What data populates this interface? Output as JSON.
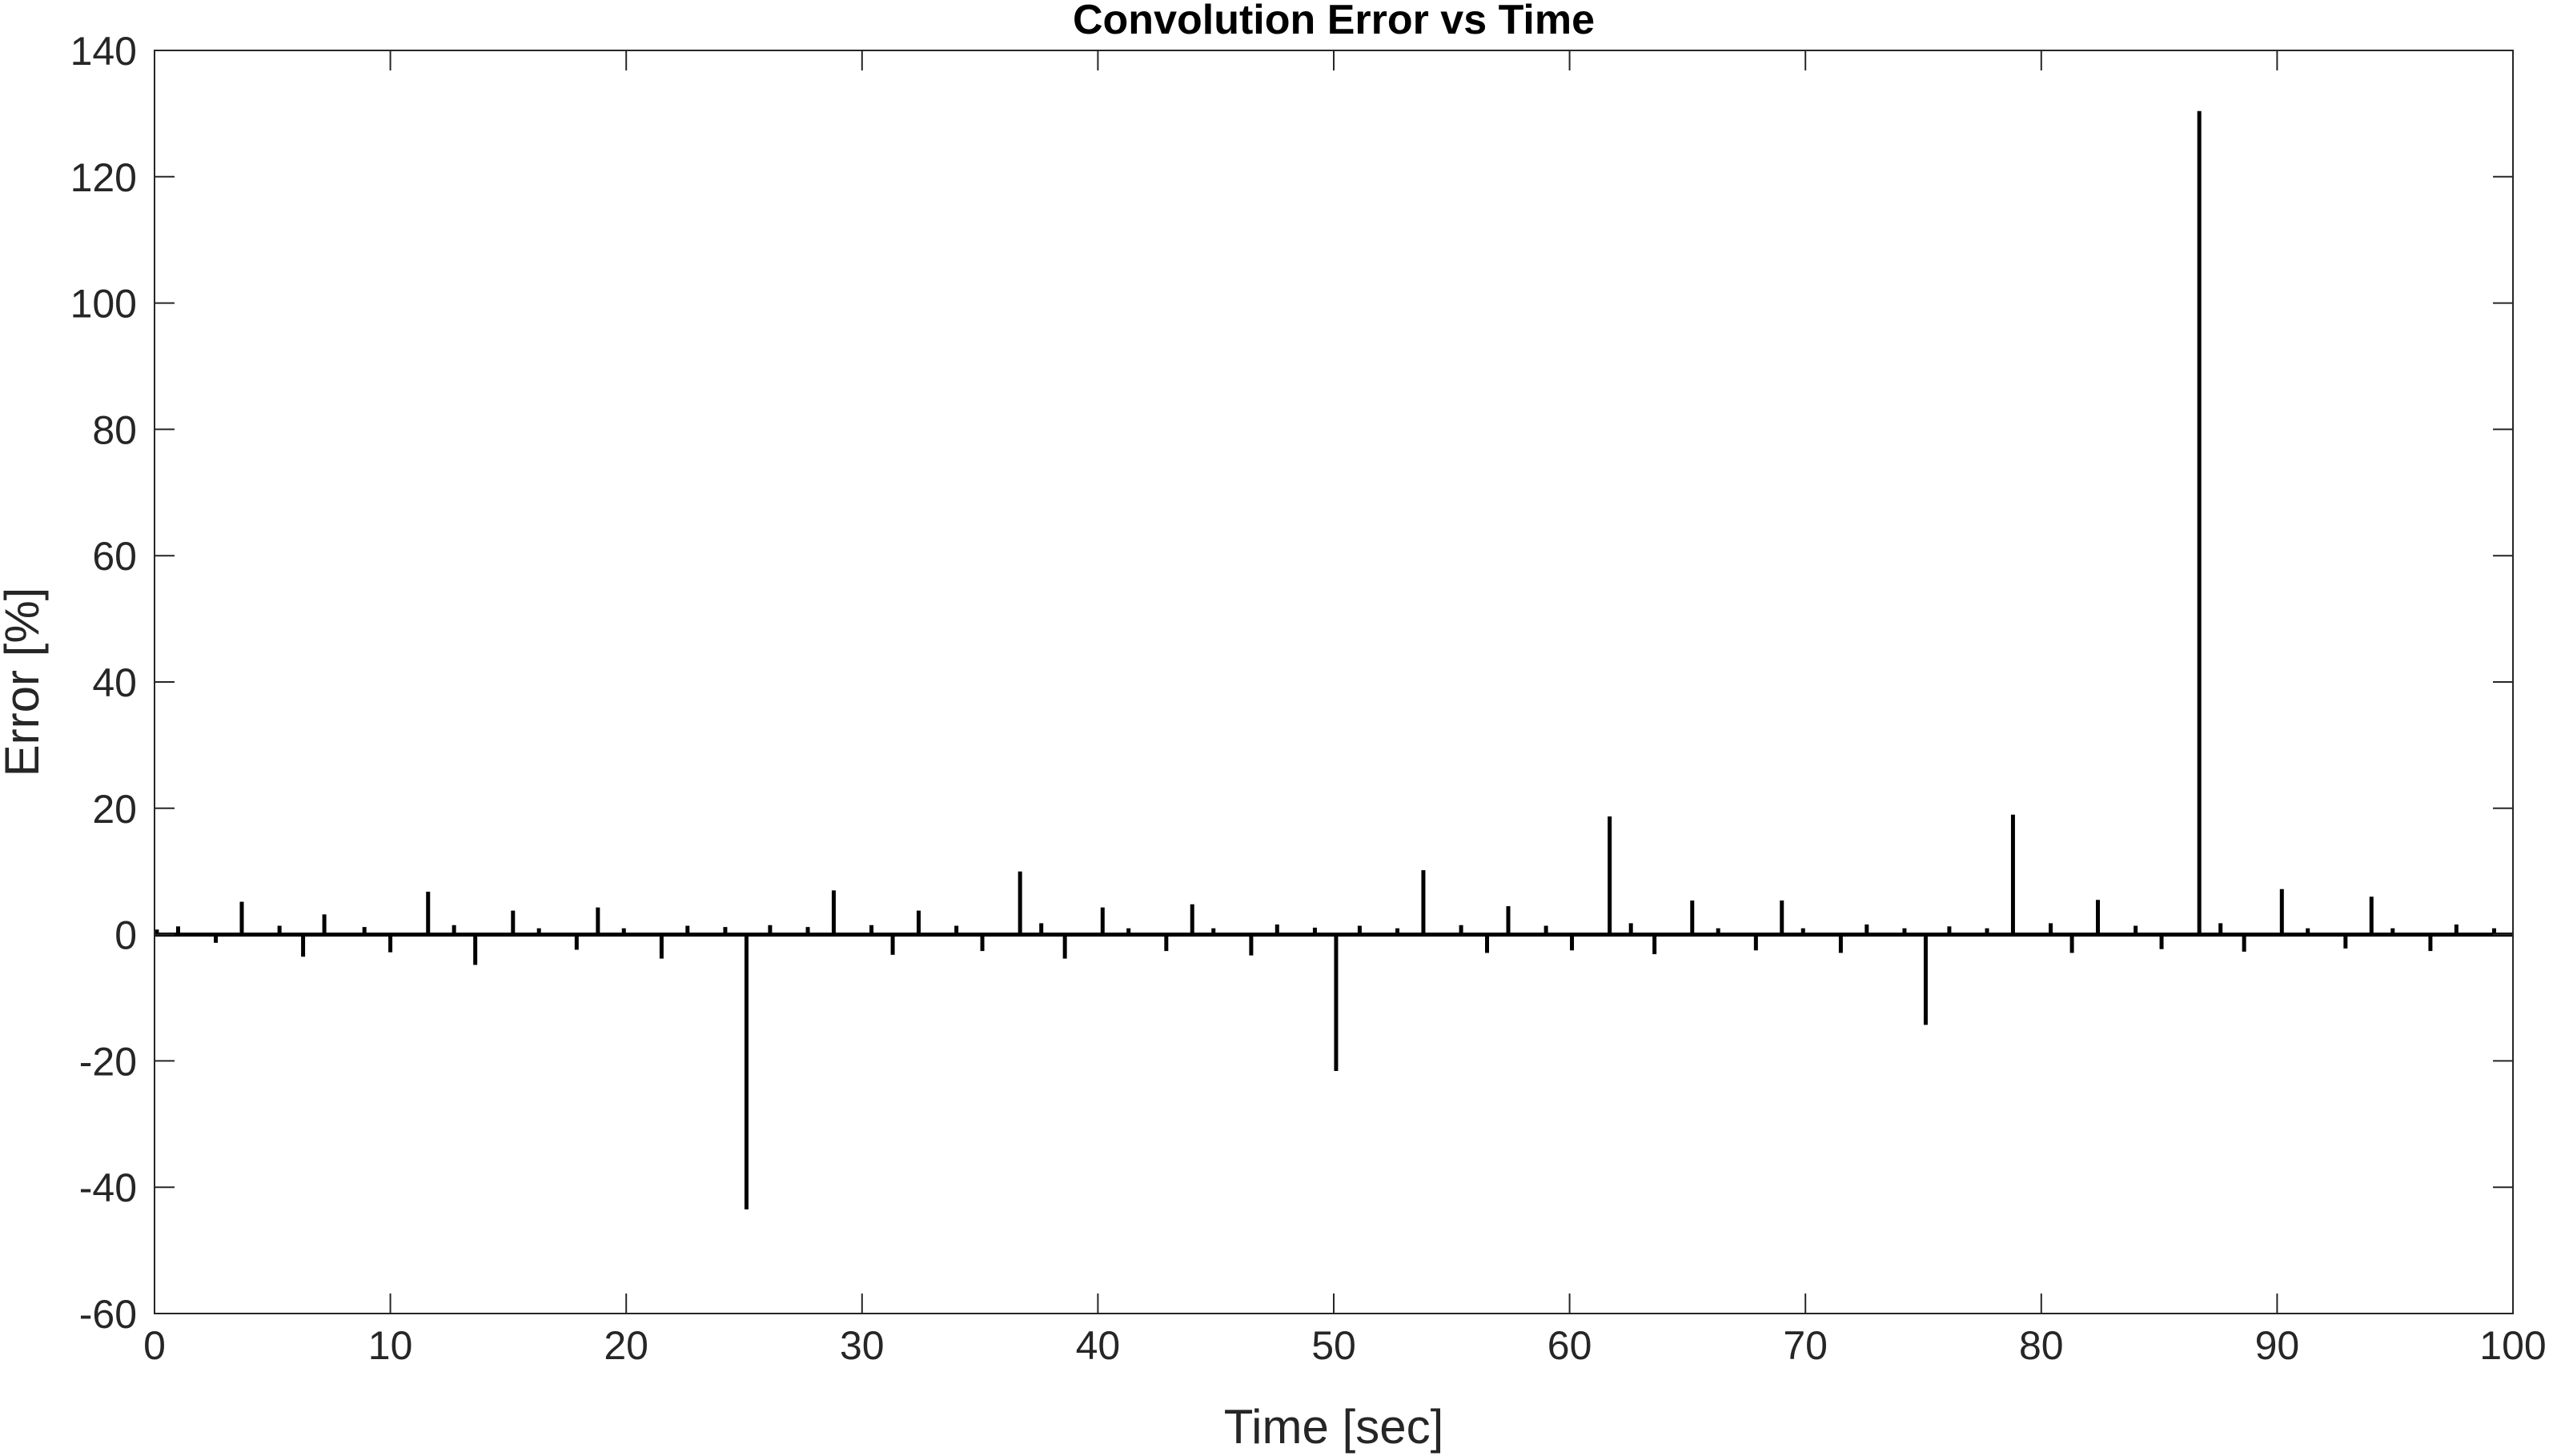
{
  "chart_data": {
    "type": "bar",
    "title": "Convolution Error vs Time",
    "xlabel": "Time [sec]",
    "ylabel": "Error [%]",
    "xlim": [
      0,
      100
    ],
    "ylim": [
      -60,
      140
    ],
    "xticks": [
      0,
      10,
      20,
      30,
      40,
      50,
      60,
      70,
      80,
      90,
      100
    ],
    "yticks": [
      -60,
      -40,
      -20,
      0,
      20,
      40,
      60,
      80,
      100,
      120,
      140
    ],
    "grid": false,
    "box": true,
    "series": [
      {
        "color": "#000000",
        "x": [
          0.1,
          1.0,
          2.6,
          3.7,
          5.3,
          6.3,
          7.2,
          8.9,
          10.0,
          11.6,
          12.7,
          13.6,
          15.2,
          16.3,
          17.9,
          18.8,
          19.9,
          21.5,
          22.6,
          24.2,
          25.1,
          26.1,
          27.7,
          28.8,
          30.4,
          31.3,
          32.4,
          34.0,
          35.1,
          36.7,
          37.6,
          38.6,
          40.2,
          41.3,
          42.9,
          44.0,
          44.9,
          46.5,
          47.6,
          49.2,
          50.1,
          51.1,
          52.7,
          53.8,
          55.4,
          56.5,
          57.4,
          59.0,
          60.1,
          61.7,
          62.6,
          63.6,
          65.2,
          66.3,
          67.9,
          69.0,
          69.9,
          71.5,
          72.6,
          74.2,
          75.1,
          76.1,
          77.7,
          78.8,
          80.4,
          81.3,
          82.4,
          84.0,
          85.1,
          86.7,
          87.6,
          88.6,
          90.2,
          91.3,
          92.9,
          94.0,
          94.9,
          96.5,
          97.6,
          99.2
        ],
        "values": [
          0.8,
          1.3,
          -1.3,
          5.2,
          1.4,
          -3.5,
          3.2,
          1.2,
          -2.8,
          6.8,
          1.5,
          -4.8,
          3.8,
          1.0,
          -2.4,
          4.3,
          1.0,
          -3.8,
          1.4,
          1.2,
          -43.5,
          1.5,
          1.2,
          7.0,
          1.5,
          -3.2,
          3.8,
          1.4,
          -2.6,
          10.0,
          1.8,
          -3.8,
          4.3,
          1.0,
          -2.6,
          4.8,
          1.0,
          -3.3,
          1.6,
          1.1,
          -21.6,
          1.4,
          1.0,
          10.2,
          1.5,
          -2.9,
          4.5,
          1.4,
          -2.5,
          18.7,
          1.8,
          -3.1,
          5.4,
          1.0,
          -2.5,
          5.4,
          1.0,
          -2.9,
          1.6,
          1.0,
          -14.3,
          1.3,
          1.0,
          19.0,
          1.8,
          -2.9,
          5.5,
          1.4,
          -2.3,
          130.4,
          1.8,
          -2.7,
          7.2,
          1.0,
          -2.2,
          6.0,
          1.0,
          -2.6,
          1.6,
          1.0
        ]
      }
    ]
  }
}
